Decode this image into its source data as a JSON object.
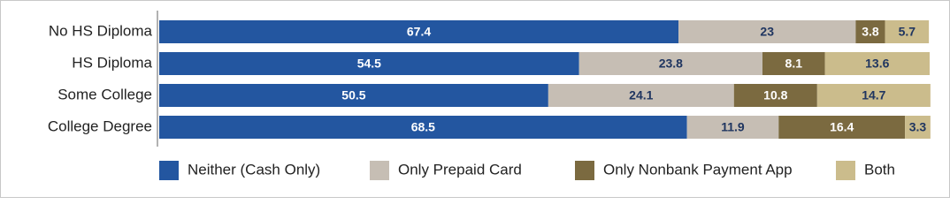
{
  "chart_data": {
    "type": "stacked-bar",
    "orientation": "horizontal",
    "categories": [
      "No HS Diploma",
      "HS Diploma",
      "Some College",
      "College Degree"
    ],
    "series": [
      {
        "name": "Neither (Cash Only)",
        "color": "#2356a0",
        "values": [
          67.4,
          54.5,
          50.5,
          68.5
        ]
      },
      {
        "name": "Only Prepaid Card",
        "color": "#c6beb4",
        "values": [
          23.0,
          23.8,
          24.1,
          11.9
        ]
      },
      {
        "name": "Only Nonbank Payment App",
        "color": "#7b6a40",
        "values": [
          3.8,
          8.1,
          10.8,
          16.4
        ]
      },
      {
        "name": "Both",
        "color": "#cbbc8c",
        "values": [
          5.7,
          13.6,
          14.7,
          3.3
        ]
      }
    ],
    "xlim": [
      0,
      100
    ]
  }
}
